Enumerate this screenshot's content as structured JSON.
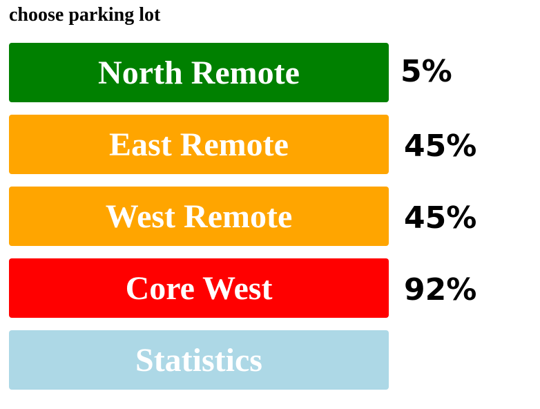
{
  "header": {
    "title": "choose parking lot"
  },
  "lots": [
    {
      "label": "North Remote",
      "percent": "5%",
      "color": "#008000"
    },
    {
      "label": "East Remote",
      "percent": "45%",
      "color": "#ffa500"
    },
    {
      "label": "West Remote",
      "percent": "45%",
      "color": "#ffa500"
    },
    {
      "label": "Core West",
      "percent": "92%",
      "color": "#ff0000"
    }
  ],
  "statistics": {
    "label": "Statistics",
    "color": "#add8e6"
  }
}
